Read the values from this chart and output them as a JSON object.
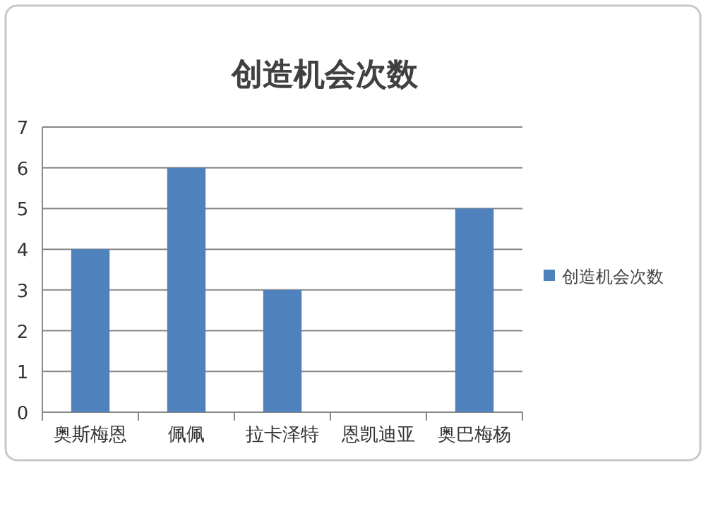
{
  "chart_data": {
    "type": "bar",
    "title": "创造机会次数",
    "categories": [
      "奥斯梅恩",
      "佩佩",
      "拉卡泽特",
      "恩凯迪亚",
      "奥巴梅杨"
    ],
    "series": [
      {
        "name": "创造机会次数",
        "color": "#4f81bd",
        "values": [
          4,
          6,
          3,
          0,
          5
        ]
      }
    ],
    "ylim": [
      0,
      7
    ],
    "yticks": [
      0,
      1,
      2,
      3,
      4,
      5,
      6,
      7
    ],
    "grid": "y",
    "legend": "right"
  }
}
